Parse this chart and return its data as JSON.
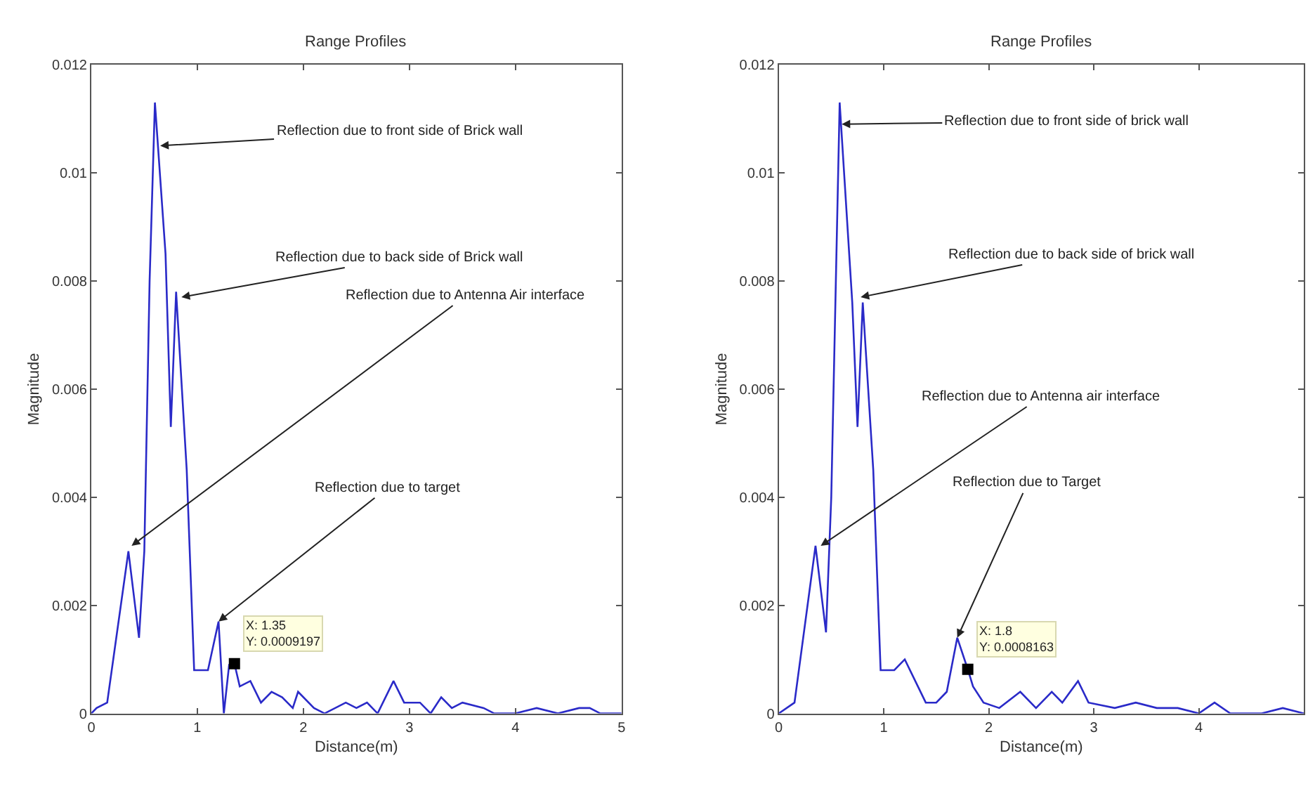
{
  "chart_data": [
    {
      "type": "line",
      "title": "Range Profiles",
      "xlabel": "Distance(m)",
      "ylabel": "Magnitude",
      "xlim": [
        0,
        5
      ],
      "xticks": [
        0,
        1,
        2,
        3,
        4,
        5
      ],
      "ylim": [
        0,
        0.012
      ],
      "yticks": [
        0,
        0.002,
        0.004,
        0.006,
        0.008,
        0.01,
        0.012
      ],
      "line_style": "solid",
      "series": [
        {
          "color": "#2a2ac8",
          "x": [
            0,
            0.05,
            0.15,
            0.35,
            0.45,
            0.5,
            0.55,
            0.6,
            0.7,
            0.75,
            0.8,
            0.9,
            0.97,
            1.1,
            1.2,
            1.25,
            1.3,
            1.35,
            1.4,
            1.5,
            1.6,
            1.7,
            1.8,
            1.9,
            1.95,
            2.1,
            2.2,
            2.4,
            2.5,
            2.6,
            2.7,
            2.85,
            2.95,
            3.1,
            3.2,
            3.3,
            3.4,
            3.5,
            3.7,
            3.8,
            4.0,
            4.2,
            4.4,
            4.6,
            4.7,
            4.8,
            5.0
          ],
          "values": [
            0,
            0.0001,
            0.0002,
            0.003,
            0.0014,
            0.003,
            0.008,
            0.0113,
            0.0085,
            0.0053,
            0.0078,
            0.0045,
            0.0008,
            0.0008,
            0.0017,
            0.0,
            0.0009,
            0.0009197,
            0.0005,
            0.0006,
            0.0002,
            0.0004,
            0.0003,
            0.0001,
            0.0004,
            0.0001,
            0.0,
            0.0002,
            0.0001,
            0.0002,
            0.0,
            0.0006,
            0.0002,
            0.0002,
            0.0,
            0.0003,
            0.0001,
            0.0002,
            0.0001,
            0.0,
            0.0,
            0.0001,
            0.0,
            0.0001,
            0.0001,
            0.0,
            0.0
          ]
        },
        {
          "type": "scatter",
          "marker": "square",
          "color": "#000000",
          "x": [
            1.35
          ],
          "values": [
            0.0009197
          ]
        }
      ],
      "annotations": [
        {
          "text": "Reflection due to front side of Brick wall",
          "x": 0.65,
          "y": 0.0105
        },
        {
          "text": "Reflection due to back side of Brick wall",
          "x": 0.85,
          "y": 0.0077
        },
        {
          "text": "Reflection due to Antenna Air interface",
          "x": 0.38,
          "y": 0.0031
        },
        {
          "text": "Reflection due to target",
          "x": 1.2,
          "y": 0.0017
        },
        {
          "text": "X: 1.35\nY: 0.0009197",
          "x": 1.35,
          "y": 0.0009197
        }
      ]
    },
    {
      "type": "line",
      "title": "Range Profiles",
      "xlabel": "Distance(m)",
      "ylabel": "Magnitude",
      "xlim": [
        0,
        5
      ],
      "xticks": [
        0,
        1,
        2,
        3,
        4
      ],
      "ylim": [
        0,
        0.012
      ],
      "yticks": [
        0,
        0.002,
        0.004,
        0.006,
        0.008,
        0.01,
        0.012
      ],
      "line_style": "solid",
      "series": [
        {
          "color": "#2a2ac8",
          "x": [
            0,
            0.15,
            0.35,
            0.45,
            0.5,
            0.58,
            0.7,
            0.75,
            0.8,
            0.9,
            0.97,
            1.1,
            1.2,
            1.4,
            1.5,
            1.6,
            1.7,
            1.8,
            1.85,
            1.95,
            2.1,
            2.3,
            2.45,
            2.6,
            2.7,
            2.85,
            2.95,
            3.2,
            3.4,
            3.6,
            3.8,
            4.0,
            4.15,
            4.3,
            4.6,
            4.8,
            5.0
          ],
          "values": [
            0,
            0.0002,
            0.0031,
            0.0015,
            0.004,
            0.0113,
            0.0076,
            0.0053,
            0.0076,
            0.0045,
            0.0008,
            0.0008,
            0.001,
            0.0002,
            0.0002,
            0.0004,
            0.0014,
            0.0008163,
            0.0005,
            0.0002,
            0.0001,
            0.0004,
            0.0001,
            0.0004,
            0.0002,
            0.0006,
            0.0002,
            0.0001,
            0.0002,
            0.0001,
            0.0001,
            0.0,
            0.0002,
            0.0,
            0.0,
            0.0001,
            0.0
          ]
        },
        {
          "type": "scatter",
          "marker": "square",
          "color": "#000000",
          "x": [
            1.8
          ],
          "values": [
            0.0008163
          ]
        }
      ],
      "annotations": [
        {
          "text": "Reflection due to front side of brick wall",
          "x": 0.6,
          "y": 0.0109
        },
        {
          "text": "Reflection due to back side of brick wall",
          "x": 0.78,
          "y": 0.0077
        },
        {
          "text": "Reflection due to Antenna air interface",
          "x": 0.4,
          "y": 0.0031
        },
        {
          "text": "Reflection due to Target",
          "x": 1.7,
          "y": 0.0014
        },
        {
          "text": "X: 1.8\nY: 0.0008163",
          "x": 1.8,
          "y": 0.0008163
        }
      ]
    }
  ]
}
